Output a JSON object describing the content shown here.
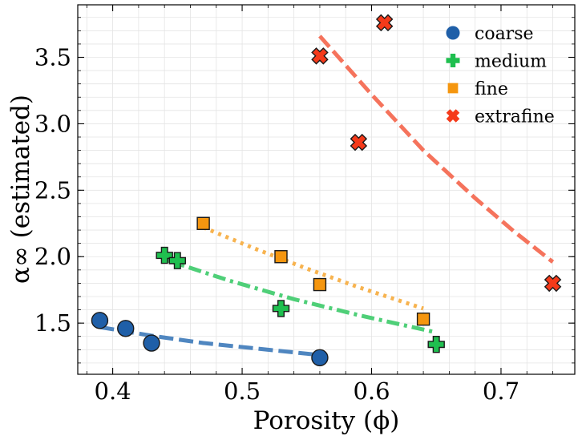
{
  "chart_data": {
    "type": "scatter",
    "title": "",
    "xlabel": "Porosity (ϕ)",
    "ylabel": "α∞ (estimated)",
    "xlim": [
      0.373,
      0.757
    ],
    "ylim": [
      1.115,
      3.895
    ],
    "xticks": [
      0.4,
      0.5,
      0.6,
      0.7
    ],
    "xtick_labels": [
      "0.4",
      "0.5",
      "0.6",
      "0.7"
    ],
    "yticks": [
      1.5,
      2.0,
      2.5,
      3.0,
      3.5
    ],
    "ytick_labels": [
      "1.5",
      "2.0",
      "2.5",
      "3.0",
      "3.5"
    ],
    "grid": true,
    "legend_position": "top-right",
    "series": [
      {
        "name": "coarse",
        "marker": "circle",
        "color": "#1f5fa8",
        "fit_color": "#4f86c0",
        "fit_style": "dashed",
        "points": [
          [
            0.39,
            1.52
          ],
          [
            0.41,
            1.46
          ],
          [
            0.43,
            1.35
          ],
          [
            0.56,
            1.24
          ]
        ],
        "fit": [
          [
            0.39,
            1.47
          ],
          [
            0.43,
            1.405
          ],
          [
            0.47,
            1.35
          ],
          [
            0.51,
            1.31
          ],
          [
            0.56,
            1.26
          ]
        ]
      },
      {
        "name": "medium",
        "marker": "plus",
        "color": "#1fbf4f",
        "fit_color": "#4fcf78",
        "fit_style": "dashdot",
        "points": [
          [
            0.44,
            2.01
          ],
          [
            0.45,
            1.97
          ],
          [
            0.53,
            1.61
          ],
          [
            0.65,
            1.34
          ]
        ],
        "fit": [
          [
            0.44,
            1.98
          ],
          [
            0.49,
            1.82
          ],
          [
            0.54,
            1.68
          ],
          [
            0.59,
            1.56
          ],
          [
            0.65,
            1.43
          ]
        ]
      },
      {
        "name": "fine",
        "marker": "square",
        "color": "#f5960f",
        "fit_color": "#f7b34f",
        "fit_style": "dotted",
        "points": [
          [
            0.47,
            2.25
          ],
          [
            0.53,
            2.0
          ],
          [
            0.56,
            1.79
          ],
          [
            0.64,
            1.53
          ]
        ],
        "fit": [
          [
            0.47,
            2.22
          ],
          [
            0.51,
            2.06
          ],
          [
            0.55,
            1.91
          ],
          [
            0.59,
            1.77
          ],
          [
            0.64,
            1.61
          ]
        ]
      },
      {
        "name": "extrafine",
        "marker": "x",
        "color": "#f53a1a",
        "fit_color": "#f5735c",
        "fit_style": "dashed",
        "points": [
          [
            0.56,
            3.51
          ],
          [
            0.59,
            2.86
          ],
          [
            0.61,
            3.76
          ],
          [
            0.74,
            1.8
          ]
        ],
        "fit": [
          [
            0.56,
            3.66
          ],
          [
            0.6,
            3.22
          ],
          [
            0.64,
            2.8
          ],
          [
            0.68,
            2.44
          ],
          [
            0.71,
            2.19
          ],
          [
            0.74,
            1.96
          ]
        ]
      }
    ]
  }
}
